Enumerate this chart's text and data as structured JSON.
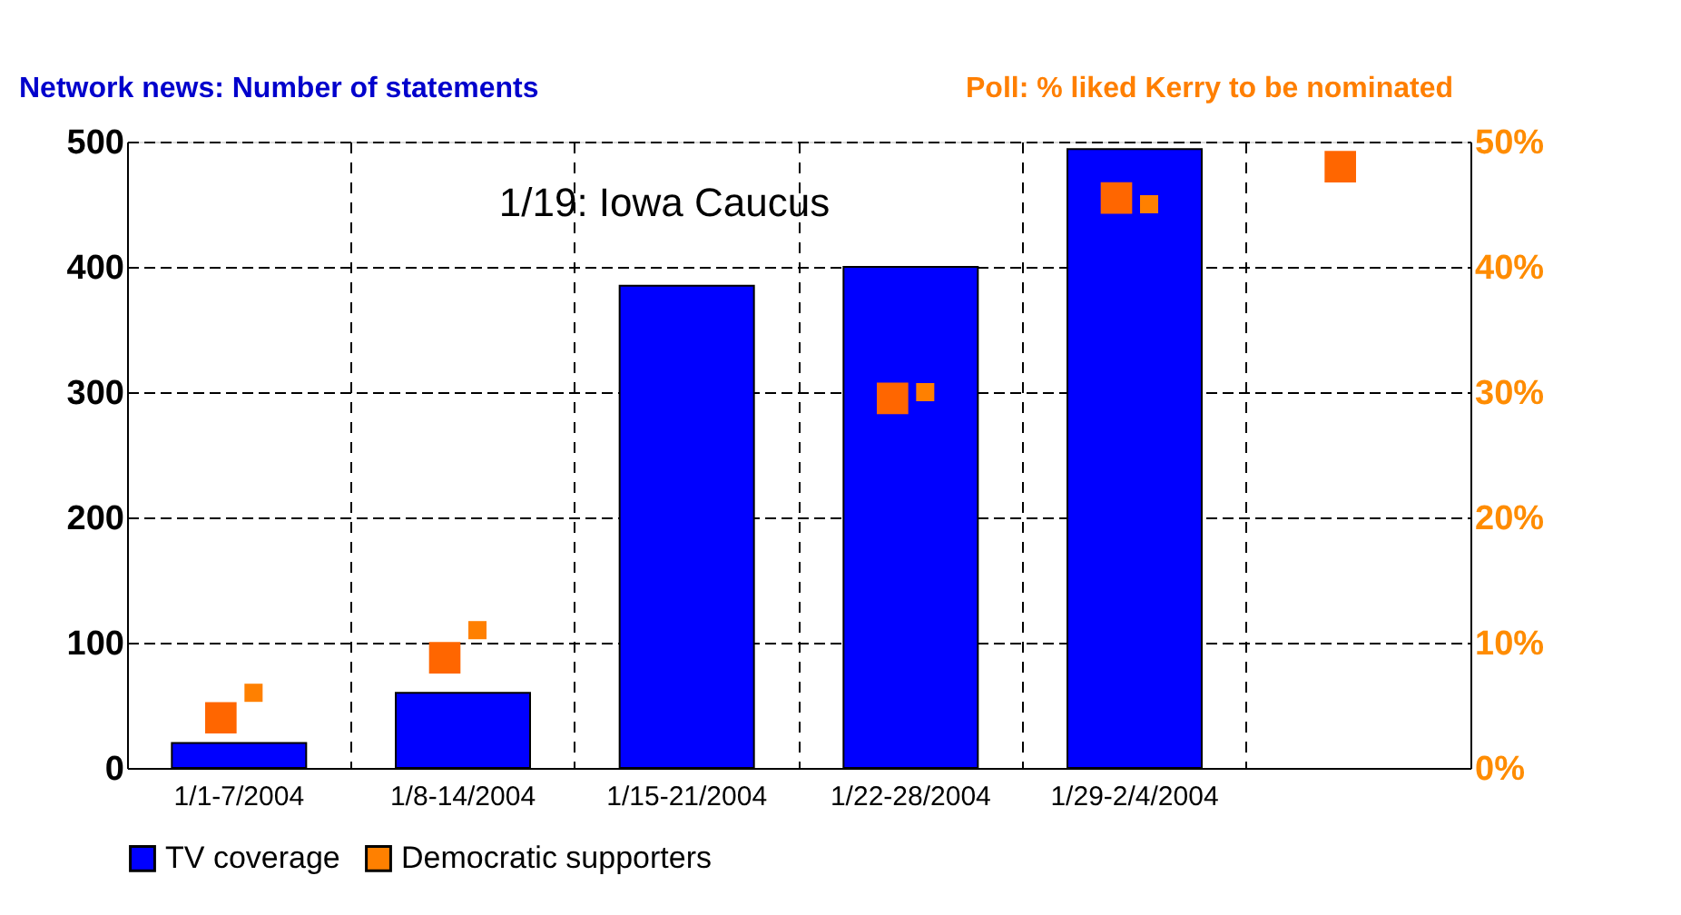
{
  "chart_data": {
    "type": "bar",
    "ylabel": "Network news: Number of statements",
    "y2label": "Poll: % liked Kerry to be nominated",
    "categories": [
      "1/1-7/2004",
      "1/8-14/2004",
      "1/15-21/2004",
      "1/22-28/2004",
      "1/29-2/4/2004",
      null
    ],
    "series": [
      {
        "name": "TV coverage",
        "color": "#0000ff",
        "values": [
          20,
          60,
          385,
          400,
          494,
          null
        ]
      },
      {
        "type": "scatter",
        "axis": "y2",
        "marker": "square",
        "color": "#ff6600",
        "values": [
          4,
          8.8,
          null,
          29.5,
          45.5,
          48
        ]
      },
      {
        "name": "Democratic supporters",
        "type": "scatter",
        "axis": "y2",
        "marker": "square",
        "color": "#ff8000",
        "values": [
          6,
          11,
          null,
          30,
          45,
          null
        ]
      }
    ],
    "ylim": [
      0,
      500
    ],
    "yticks": [
      0,
      100,
      200,
      300,
      400,
      500
    ],
    "y2lim": [
      0,
      50
    ],
    "y2ticks": [
      {
        "value": 0,
        "label": "0%"
      },
      {
        "value": 10,
        "label": "10%"
      },
      {
        "value": 20,
        "label": "20%"
      },
      {
        "value": 30,
        "label": "30%"
      },
      {
        "value": 40,
        "label": "40%"
      },
      {
        "value": 50,
        "label": "50%"
      }
    ],
    "annotations": [
      "1/19: Iowa Caucus"
    ],
    "grid": true,
    "legend": "bottom"
  }
}
